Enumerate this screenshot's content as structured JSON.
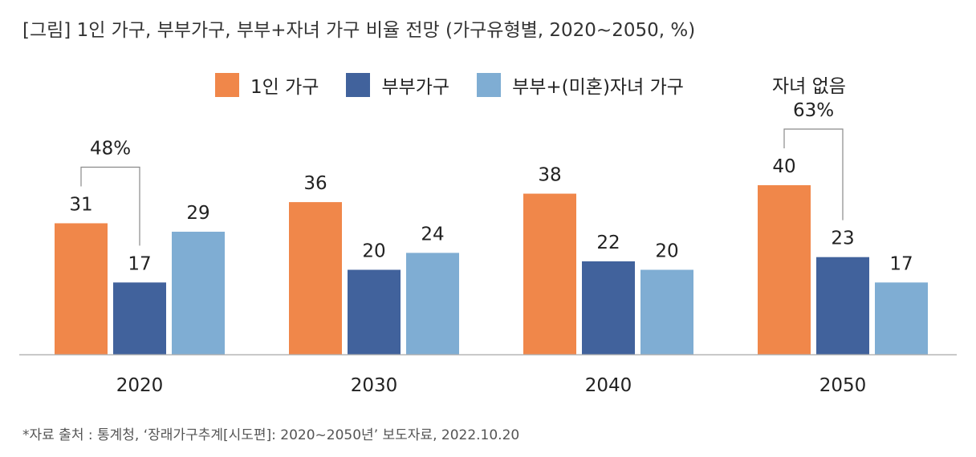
{
  "title": "[그림] 1인 가구, 부부가구, 부부+자녀 가구 비율 전망 (가구유형별, 2020~2050, %)",
  "footnote": "*자료 출처 : 통계청, ‘장래가구추계[시도편]: 2020~2050년’ 보도자료, 2022.10.20",
  "colors": {
    "single": "#F0874A",
    "couple": "#41629C",
    "couple_children": "#7FADD3"
  },
  "chart_data": {
    "type": "bar",
    "categories": [
      "2020",
      "2030",
      "2040",
      "2050"
    ],
    "series": [
      {
        "name": "1인 가구",
        "values": [
          31,
          36,
          38,
          40
        ]
      },
      {
        "name": "부부가구",
        "values": [
          17,
          20,
          22,
          23
        ]
      },
      {
        "name": "부부+(미혼)자녀 가구",
        "values": [
          29,
          24,
          20,
          17
        ]
      }
    ],
    "ylim": [
      0,
      42
    ],
    "grid": false,
    "legend": "top",
    "annotations": [
      {
        "category": "2020",
        "text": "48%"
      },
      {
        "category": "2050",
        "label": "자녀 없음",
        "text": "63%"
      }
    ]
  }
}
